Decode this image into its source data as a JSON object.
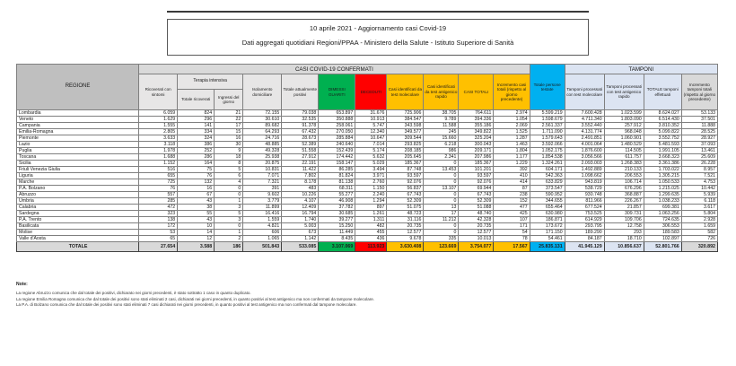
{
  "report": {
    "title_line1": "10 aprile 2021 - Aggiornamento casi Covid-19",
    "title_line2": "Dati aggregati quotidiani Regioni/PPAA - Ministero della Salute - Istituto Superiore di Sanità"
  },
  "colors": {
    "green_dimessi": "#00b050",
    "red_deceduti": "#ff0000",
    "orange_casi": "#ffc000",
    "blue_testate": "#00b0f0",
    "tamponi_header": "#dce4f2",
    "gray_header": "#d9d9d9",
    "region_header": "#bfbfbf"
  },
  "table": {
    "region_col": "REGIONE",
    "banner_confirmed": "CASI COVID-19 CONFERMATI",
    "banner_tamponi": "TAMPONI",
    "terapia_intensiva_label": "Terapia intensiva",
    "columns": {
      "ricoverati": "Ricoverati con sintomi",
      "ti_totale": "Totale ricoverati",
      "ti_ingressi": "Ingressi del giorno",
      "isolamento": "Isolamento domiciliare",
      "attualmente_positivi": "Totale attualmente positivi",
      "dimessi": "DIMESSI GUARITI",
      "deceduti": "DECEDUTI",
      "casi_molecolare": "Casi identificati da test molecolare",
      "casi_antigenico": "Casi identificati da test antigenico rapido",
      "casi_totali": "CASI TOTALI",
      "incremento_casi": "Incremento casi totali (rispetto al giorno precedente)",
      "persone_testate": "Totale persone testate",
      "tamponi_molecolare": "Tamponi processati con test molecolare",
      "tamponi_antigenico": "Tamponi processati con test antigenico rapido",
      "tamponi_totale": "TOTALE tamponi effettuati",
      "incremento_tamponi": "Incremento tamponi totali (rispetto al giorno precedente)"
    },
    "rows": [
      {
        "name": "Lombardia",
        "values": [
          "6.059",
          "824",
          "21",
          "72.155",
          "79.038",
          "653.897",
          "31.676",
          "725.906",
          "38.705",
          "764.611",
          "2.974",
          "5.599.219",
          "7.600.428",
          "1.023.599",
          "8.624.027",
          "53.133"
        ]
      },
      {
        "name": "Veneto",
        "values": [
          "1.629",
          "296",
          "22",
          "30.610",
          "32.535",
          "350.888",
          "10.913",
          "384.547",
          "9.789",
          "394.336",
          "1.054",
          "1.598.679",
          "4.711.340",
          "1.803.090",
          "6.514.430",
          "37.501"
        ]
      },
      {
        "name": "Campania",
        "values": [
          "1.555",
          "141",
          "17",
          "89.682",
          "91.378",
          "258.061",
          "5.747",
          "343.598",
          "11.588",
          "355.186",
          "2.069",
          "2.561.337",
          "3.552.440",
          "257.912",
          "3.810.352",
          "11.888"
        ]
      },
      {
        "name": "Emilia-Romagna",
        "values": [
          "2.805",
          "334",
          "15",
          "64.293",
          "67.432",
          "270.050",
          "12.340",
          "349.577",
          "245",
          "349.822",
          "1.525",
          "1.711.090",
          "4.131.774",
          "968.048",
          "5.099.822",
          "28.525"
        ]
      },
      {
        "name": "Piemonte",
        "values": [
          "3.633",
          "324",
          "16",
          "24.716",
          "28.673",
          "285.884",
          "10.647",
          "309.544",
          "15.660",
          "325.204",
          "1.287",
          "1.579.643",
          "2.491.851",
          "1.060.901",
          "3.552.752",
          "28.927"
        ]
      },
      {
        "name": "Lazio",
        "values": [
          "3.118",
          "386",
          "30",
          "48.885",
          "52.389",
          "240.640",
          "7.014",
          "293.825",
          "6.218",
          "300.043",
          "1.463",
          "3.592.066",
          "4.001.064",
          "1.480.529",
          "5.481.593",
          "37.093"
        ]
      },
      {
        "name": "Puglia",
        "values": [
          "1.978",
          "252",
          "9",
          "49.328",
          "51.558",
          "152.439",
          "5.174",
          "208.185",
          "986",
          "209.171",
          "1.804",
          "1.052.175",
          "1.876.600",
          "114.505",
          "1.991.105",
          "13.461"
        ]
      },
      {
        "name": "Toscana",
        "values": [
          "1.688",
          "286",
          "18",
          "25.938",
          "27.912",
          "174.442",
          "5.632",
          "205.645",
          "2.341",
          "207.986",
          "1.177",
          "1.854.538",
          "3.056.566",
          "611.757",
          "3.668.323",
          "25.609"
        ]
      },
      {
        "name": "Sicilia",
        "values": [
          "1.152",
          "164",
          "8",
          "20.875",
          "22.191",
          "158.147",
          "5.029",
          "185.367",
          "0",
          "185.367",
          "1.229",
          "1.324.261",
          "2.093.003",
          "1.268.383",
          "3.361.386",
          "26.228"
        ]
      },
      {
        "name": "Friuli Venezia Giulia",
        "values": [
          "516",
          "75",
          "5",
          "10.831",
          "11.422",
          "86.285",
          "3.494",
          "87.748",
          "13.453",
          "101.201",
          "392",
          "604.171",
          "1.492.889",
          "210.133",
          "1.703.022",
          "8.957"
        ]
      },
      {
        "name": "Liguria",
        "values": [
          "655",
          "76",
          "6",
          "7.071",
          "7.802",
          "81.824",
          "3.971",
          "93.597",
          "0",
          "93.597",
          "410",
          "542.363",
          "1.098.662",
          "206.553",
          "1.305.215",
          "7.521"
        ]
      },
      {
        "name": "Marche",
        "values": [
          "725",
          "132",
          "4",
          "7.321",
          "8.178",
          "81.138",
          "2.760",
          "92.076",
          "0",
          "92.076",
          "414",
          "633.829",
          "943.819",
          "106.714",
          "1.050.533",
          "4.753"
        ]
      },
      {
        "name": "P.A. Bolzano",
        "values": [
          "76",
          "16",
          "0",
          "391",
          "483",
          "68.311",
          "1.150",
          "56.837",
          "13.107",
          "69.944",
          "87",
          "373.547",
          "538.729",
          "676.296",
          "1.215.025",
          "10.442"
        ]
      },
      {
        "name": "Abruzzo",
        "values": [
          "557",
          "67",
          "0",
          "9.602",
          "10.226",
          "55.277",
          "2.240",
          "67.743",
          "0",
          "67.743",
          "238",
          "590.952",
          "930.748",
          "368.887",
          "1.299.635",
          "5.939"
        ]
      },
      {
        "name": "Umbria",
        "values": [
          "285",
          "43",
          "1",
          "3.779",
          "4.107",
          "46.908",
          "1.294",
          "52.309",
          "0",
          "52.309",
          "152",
          "344.655",
          "811.966",
          "226.267",
          "1.038.233",
          "6.118"
        ]
      },
      {
        "name": "Calabria",
        "values": [
          "472",
          "38",
          "3",
          "11.899",
          "12.409",
          "37.782",
          "897",
          "51.075",
          "13",
          "51.088",
          "477",
          "655.464",
          "677.524",
          "21.857",
          "699.381",
          "3.617"
        ]
      },
      {
        "name": "Sardegna",
        "values": [
          "323",
          "55",
          "5",
          "16.416",
          "16.794",
          "30.685",
          "1.261",
          "48.723",
          "17",
          "48.740",
          "425",
          "630.980",
          "753.525",
          "309.731",
          "1.063.256",
          "5.804"
        ]
      },
      {
        "name": "P.A. Trento",
        "values": [
          "138",
          "43",
          "3",
          "1.559",
          "1.740",
          "39.277",
          "1.311",
          "31.116",
          "11.212",
          "42.328",
          "107",
          "186.871",
          "614.929",
          "109.706",
          "724.635",
          "2.928"
        ]
      },
      {
        "name": "Basilicata",
        "values": [
          "172",
          "10",
          "0",
          "4.821",
          "5.003",
          "15.250",
          "482",
          "20.735",
          "0",
          "20.735",
          "171",
          "173.672",
          "293.795",
          "12.758",
          "306.553",
          "1.659"
        ]
      },
      {
        "name": "Molise",
        "values": [
          "53",
          "14",
          "1",
          "606",
          "673",
          "11.449",
          "455",
          "12.577",
          "0",
          "12.577",
          "54",
          "171.150",
          "189.290",
          "293",
          "189.583",
          "582"
        ]
      },
      {
        "name": "Valle d'Aosta",
        "values": [
          "65",
          "12",
          "2",
          "1.065",
          "1.142",
          "8.435",
          "436",
          "9.678",
          "335",
          "10.013",
          "78",
          "54.461",
          "84.187",
          "18.710",
          "102.897",
          "726"
        ]
      }
    ],
    "total_row": {
      "name": "TOTALE",
      "values": [
        "27.654",
        "3.588",
        "186",
        "501.843",
        "533.085",
        "3.107.069",
        "113.923",
        "3.630.408",
        "123.669",
        "3.754.077",
        "17.567",
        "25.835.131",
        "41.945.129",
        "10.856.637",
        "52.801.766",
        "320.892"
      ]
    }
  },
  "notes": {
    "title": "Note:",
    "lines": [
      "La regione Abruzzo comunica che dal totale dei positivi, dichiarato nei giorni precedenti, è stato sottratto 1 caso in quanto duplicato.",
      "La regione Emilia Romagna comunica che dal totale dei positivi sono stati eliminati 2 casi, dichiarati nei giorni precedenti, in quanto positivi al test antigenico ma non confermati da tampone molecolare.",
      "La P.A. di Bolzano comunica che dal totale dei positivi sono stati eliminati 7 casi dichiarati nei giorni precedenti, in quanto positivi al test antigenico ma non confermati dal tampone molecolare."
    ]
  }
}
